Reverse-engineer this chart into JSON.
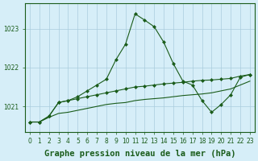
{
  "title": "Graphe pression niveau de la mer (hPa)",
  "bg_color": "#d6eef8",
  "grid_color": "#aaccdd",
  "line_color": "#1a5c1a",
  "xlim": [
    -0.5,
    23.5
  ],
  "ylim": [
    1020.35,
    1023.65
  ],
  "yticks": [
    1021,
    1022,
    1023
  ],
  "xticks": [
    0,
    1,
    2,
    3,
    4,
    5,
    6,
    7,
    8,
    9,
    10,
    11,
    12,
    13,
    14,
    15,
    16,
    17,
    18,
    19,
    20,
    21,
    22,
    23
  ],
  "line_peak_x": [
    0,
    1,
    2,
    3,
    4,
    5,
    6,
    7,
    8,
    9,
    10,
    11,
    12,
    13,
    14,
    15,
    16,
    17,
    18,
    19,
    20,
    21,
    22,
    23
  ],
  "line_peak_y": [
    1020.6,
    1020.6,
    1020.75,
    1021.1,
    1021.15,
    1021.25,
    1021.4,
    1021.55,
    1021.7,
    1022.2,
    1022.6,
    1023.38,
    1023.22,
    1023.05,
    1022.65,
    1022.1,
    1021.65,
    1021.55,
    1021.15,
    1020.85,
    1021.05,
    1021.3,
    1021.75,
    1021.82
  ],
  "line_mid_x": [
    0,
    1,
    2,
    3,
    4,
    5,
    6,
    7,
    8,
    9,
    10,
    11,
    12,
    13,
    14,
    15,
    16,
    17,
    18,
    19,
    20,
    21,
    22,
    23
  ],
  "line_mid_y": [
    1020.6,
    1020.6,
    1020.75,
    1021.1,
    1021.15,
    1021.2,
    1021.25,
    1021.3,
    1021.35,
    1021.4,
    1021.45,
    1021.5,
    1021.52,
    1021.55,
    1021.58,
    1021.6,
    1021.62,
    1021.65,
    1021.67,
    1021.68,
    1021.7,
    1021.72,
    1021.78,
    1021.82
  ],
  "line_bot_x": [
    0,
    1,
    2,
    3,
    4,
    5,
    6,
    7,
    8,
    9,
    10,
    11,
    12,
    13,
    14,
    15,
    16,
    17,
    18,
    19,
    20,
    21,
    22,
    23
  ],
  "line_bot_y": [
    1020.6,
    1020.6,
    1020.72,
    1020.82,
    1020.85,
    1020.9,
    1020.95,
    1021.0,
    1021.05,
    1021.08,
    1021.1,
    1021.15,
    1021.18,
    1021.2,
    1021.22,
    1021.25,
    1021.28,
    1021.3,
    1021.32,
    1021.35,
    1021.4,
    1021.45,
    1021.55,
    1021.65
  ],
  "title_fontsize": 7.5,
  "tick_fontsize": 5.5
}
